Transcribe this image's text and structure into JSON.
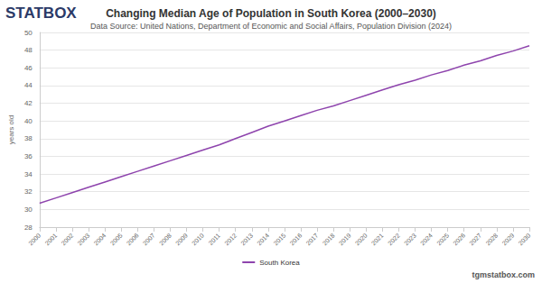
{
  "chart_data": {
    "type": "line",
    "title": "Changing Median Age of Population in South Korea (2000–2030)",
    "subtitle": "Data Source: United Nations, Department of Economic and Social Affairs, Population Division (2024)",
    "logo": "STATBOX",
    "footer": "tgmstatbox.com",
    "y_label": "years old",
    "categories": [
      "2000",
      "2001",
      "2002",
      "2003",
      "2004",
      "2005",
      "2006",
      "2007",
      "2008",
      "2009",
      "2010",
      "2011",
      "2012",
      "2013",
      "2014",
      "2015",
      "2016",
      "2017",
      "2018",
      "2019",
      "2020",
      "2021",
      "2022",
      "2023",
      "2024",
      "2025",
      "2026",
      "2027",
      "2028",
      "2029",
      "2030"
    ],
    "series": [
      {
        "name": "South Korea",
        "color": "#8e44ad",
        "values": [
          30.7,
          31.3,
          31.9,
          32.5,
          33.1,
          33.7,
          34.3,
          34.9,
          35.5,
          36.1,
          36.7,
          37.3,
          38.0,
          38.7,
          39.4,
          40.0,
          40.6,
          41.2,
          41.7,
          42.3,
          42.9,
          43.5,
          44.1,
          44.6,
          45.2,
          45.7,
          46.3,
          46.8,
          47.4,
          47.9,
          48.5
        ]
      }
    ],
    "ylim": [
      28,
      50
    ],
    "yticks": [
      28,
      30,
      32,
      34,
      36,
      38,
      40,
      42,
      44,
      46,
      48,
      50
    ],
    "grid": true,
    "legend": "bottom"
  }
}
